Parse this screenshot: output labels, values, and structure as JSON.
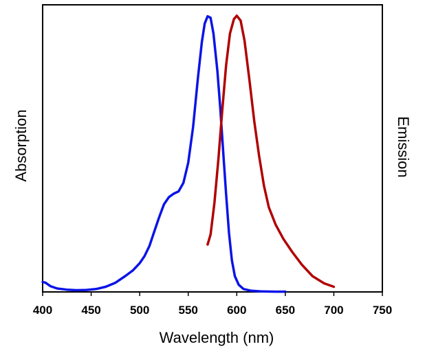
{
  "chart_data": {
    "type": "line",
    "title": "",
    "xlabel": "Wavelength (nm)",
    "ylabel_left": "Absorption",
    "ylabel_right": "Emission",
    "xlim": [
      400,
      750
    ],
    "ylim": [
      0,
      1
    ],
    "x_ticks": [
      400,
      450,
      500,
      550,
      600,
      650,
      700,
      750
    ],
    "y_ticks_shown": false,
    "grid": false,
    "legend": "none",
    "series": [
      {
        "color": "#0A14E6",
        "points": [
          [
            400,
            0.035
          ],
          [
            403,
            0.032
          ],
          [
            408,
            0.02
          ],
          [
            415,
            0.012
          ],
          [
            425,
            0.008
          ],
          [
            435,
            0.006
          ],
          [
            445,
            0.007
          ],
          [
            455,
            0.01
          ],
          [
            465,
            0.018
          ],
          [
            475,
            0.032
          ],
          [
            485,
            0.055
          ],
          [
            493,
            0.075
          ],
          [
            500,
            0.1
          ],
          [
            505,
            0.125
          ],
          [
            510,
            0.16
          ],
          [
            515,
            0.21
          ],
          [
            520,
            0.26
          ],
          [
            525,
            0.305
          ],
          [
            530,
            0.33
          ],
          [
            535,
            0.342
          ],
          [
            540,
            0.35
          ],
          [
            545,
            0.38
          ],
          [
            550,
            0.45
          ],
          [
            555,
            0.575
          ],
          [
            560,
            0.745
          ],
          [
            564,
            0.87
          ],
          [
            567,
            0.935
          ],
          [
            570,
            0.96
          ],
          [
            573,
            0.955
          ],
          [
            576,
            0.9
          ],
          [
            580,
            0.77
          ],
          [
            583,
            0.64
          ],
          [
            586,
            0.49
          ],
          [
            589,
            0.34
          ],
          [
            592,
            0.205
          ],
          [
            595,
            0.11
          ],
          [
            598,
            0.055
          ],
          [
            602,
            0.025
          ],
          [
            607,
            0.01
          ],
          [
            615,
            0.004
          ],
          [
            625,
            0.002
          ],
          [
            640,
            0.001
          ],
          [
            650,
            0.001
          ]
        ]
      },
      {
        "color": "#B00000",
        "points": [
          [
            570,
            0.165
          ],
          [
            573,
            0.2
          ],
          [
            577,
            0.31
          ],
          [
            581,
            0.46
          ],
          [
            585,
            0.63
          ],
          [
            589,
            0.79
          ],
          [
            593,
            0.9
          ],
          [
            597,
            0.95
          ],
          [
            600,
            0.962
          ],
          [
            604,
            0.945
          ],
          [
            608,
            0.875
          ],
          [
            613,
            0.74
          ],
          [
            618,
            0.595
          ],
          [
            623,
            0.475
          ],
          [
            628,
            0.37
          ],
          [
            633,
            0.295
          ],
          [
            640,
            0.235
          ],
          [
            648,
            0.185
          ],
          [
            657,
            0.14
          ],
          [
            667,
            0.095
          ],
          [
            678,
            0.055
          ],
          [
            690,
            0.03
          ],
          [
            700,
            0.018
          ]
        ]
      }
    ]
  }
}
